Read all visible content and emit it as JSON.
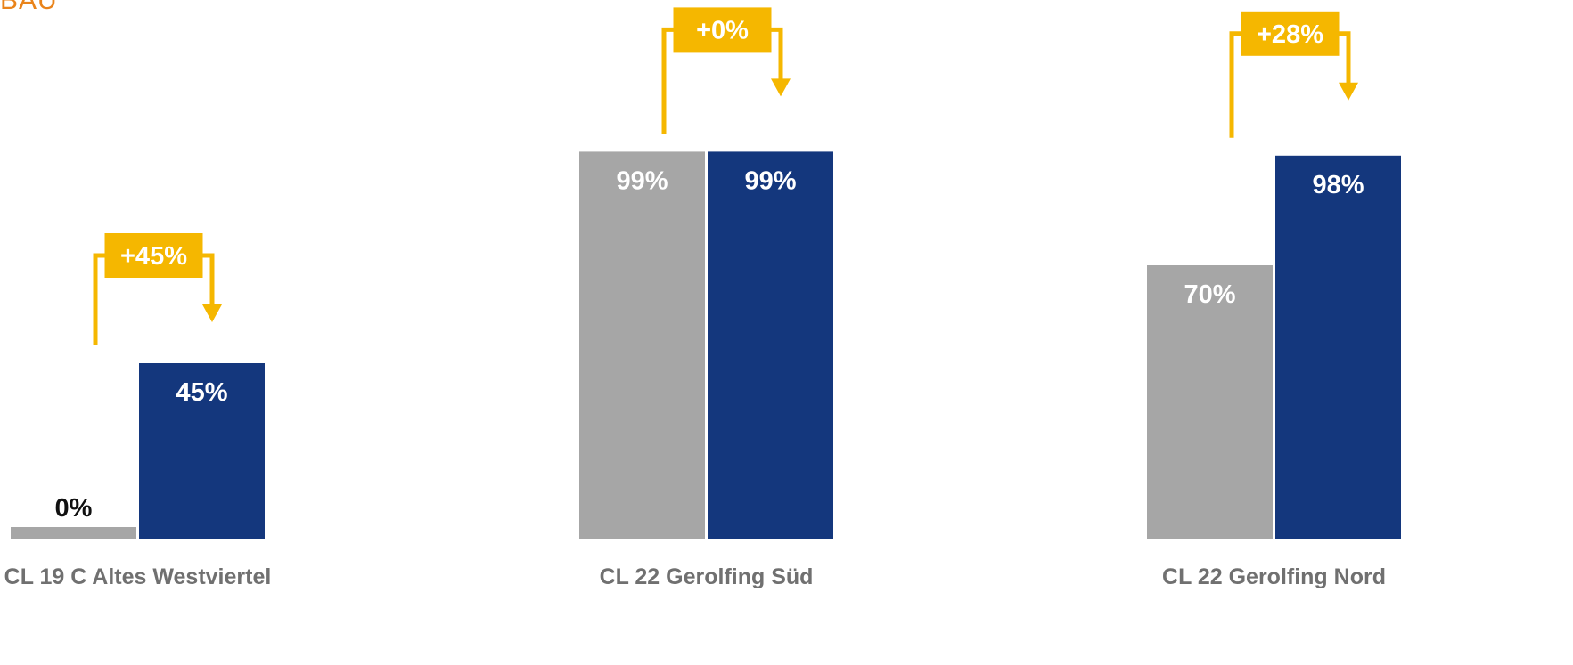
{
  "header": {
    "corner_text": "BAU"
  },
  "colors": {
    "before": "#a6a6a6",
    "after": "#14377d",
    "delta": "#f5b700",
    "corner_text": "#e9831a",
    "category_text": "#707070"
  },
  "chart_data": {
    "type": "bar",
    "title": "",
    "xlabel": "",
    "ylabel": "",
    "ylim": [
      0,
      100
    ],
    "grid": false,
    "legend": "none",
    "categories": [
      "CL 19 C Altes Westviertel",
      "CL 22 Gerolfing Süd",
      "CL 22 Gerolfing Nord"
    ],
    "series": [
      {
        "values": [
          0,
          99,
          70
        ]
      },
      {
        "values": [
          45,
          99,
          98
        ]
      }
    ],
    "value_labels": [
      [
        "0%",
        "99%",
        "70%"
      ],
      [
        "45%",
        "99%",
        "98%"
      ]
    ],
    "deltas": [
      "+45%",
      "+0%",
      "+28%"
    ]
  }
}
